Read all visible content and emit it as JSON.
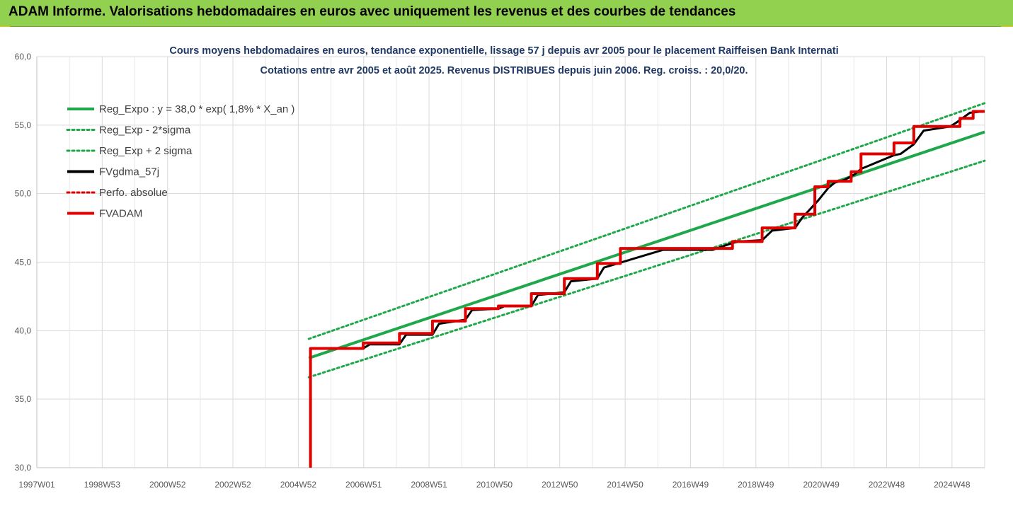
{
  "banner": {
    "title": "ADAM Informe. Valorisations hebdomadaires en euros avec uniquement les revenus et des courbes de tendances",
    "background": "#92d050"
  },
  "chart_data": {
    "type": "line",
    "title": [
      "Cours moyens hebdomadaires en euros, tendance exponentielle, lissage 57 j depuis avr 2005 pour le placement Raiffeisen Bank Internati",
      "Cotations entre avr 2005 et août 2025. Revenus DISTRIBUES depuis juin 2006. Reg. croiss. : 20,0/20."
    ],
    "x_ticks": [
      "1997W01",
      "1998W53",
      "2000W52",
      "2002W52",
      "2004W52",
      "2006W51",
      "2008W51",
      "2010W50",
      "2012W50",
      "2014W50",
      "2016W49",
      "2018W49",
      "2020W49",
      "2022W48",
      "2024W48"
    ],
    "y_ticks": [
      "30,0",
      "35,0",
      "40,0",
      "45,0",
      "50,0",
      "55,0",
      "60,0"
    ],
    "ylim": [
      30,
      60
    ],
    "xlim": [
      1997.0,
      2025.75
    ],
    "grid": true,
    "legend_position": "top-left",
    "series": [
      {
        "name": "Reg_Expo : y = 38,0 * exp( 1,8% *  X_an )",
        "color": "#1ea84a",
        "style": "solid",
        "width": 4,
        "x": [
          2005.25,
          2025.75
        ],
        "y": [
          38.0,
          54.5
        ]
      },
      {
        "name": "Reg_Exp - 2*sigma",
        "color": "#1ea84a",
        "style": "dotted",
        "width": 3,
        "x": [
          2005.25,
          2025.75
        ],
        "y": [
          36.6,
          52.4
        ]
      },
      {
        "name": "Reg_Exp + 2 sigma",
        "color": "#1ea84a",
        "style": "dotted",
        "width": 3,
        "x": [
          2005.25,
          2025.75
        ],
        "y": [
          39.4,
          56.6
        ]
      },
      {
        "name": "FVgdma_57j",
        "color": "#000000",
        "style": "solid",
        "width": 3,
        "x": [
          2005.4,
          2006.9,
          2007.1,
          2008.0,
          2008.2,
          2009.0,
          2009.2,
          2010.0,
          2010.2,
          2011.0,
          2011.2,
          2012.0,
          2012.2,
          2013.0,
          2013.2,
          2014.0,
          2014.2,
          2016.0,
          2017.5,
          2018.1,
          2018.3,
          2019.0,
          2019.3,
          2020.0,
          2020.2,
          2020.7,
          2021.0,
          2021.2,
          2021.5,
          2021.8,
          2022.0,
          2023.0,
          2023.2,
          2023.6,
          2023.9,
          2024.7,
          2024.9,
          2025.3,
          2025.7
        ],
        "y": [
          38.7,
          38.7,
          39.0,
          39.0,
          39.7,
          39.7,
          40.5,
          40.8,
          41.5,
          41.6,
          41.8,
          41.8,
          42.6,
          42.8,
          43.6,
          43.8,
          44.6,
          45.9,
          45.9,
          46.4,
          46.5,
          46.6,
          47.3,
          47.5,
          48.2,
          49.5,
          50.4,
          50.8,
          51.0,
          51.4,
          51.8,
          52.8,
          52.9,
          53.6,
          54.6,
          54.9,
          55.2,
          55.9,
          56.0
        ]
      },
      {
        "name": "Perfo. absolue",
        "color": "#e00000",
        "style": "dotted",
        "width": 2,
        "x": [],
        "y": []
      },
      {
        "name": "FVADAM",
        "color": "#e00000",
        "style": "solid",
        "width": 4,
        "x": [
          2005.3,
          2005.3,
          2006.9,
          2006.9,
          2008.0,
          2008.0,
          2009.0,
          2009.0,
          2010.0,
          2010.0,
          2011.0,
          2011.0,
          2012.0,
          2012.0,
          2013.0,
          2013.0,
          2014.0,
          2014.0,
          2014.7,
          2014.7,
          2018.1,
          2018.1,
          2019.0,
          2019.0,
          2020.0,
          2020.0,
          2020.6,
          2020.6,
          2021.0,
          2021.0,
          2021.7,
          2021.7,
          2022.0,
          2022.0,
          2023.0,
          2023.0,
          2023.6,
          2023.6,
          2024.0,
          2024.0,
          2025.0,
          2025.0,
          2025.4,
          2025.4,
          2025.75
        ],
        "y": [
          30.0,
          38.7,
          38.7,
          39.1,
          39.1,
          39.8,
          39.8,
          40.7,
          40.7,
          41.6,
          41.6,
          41.8,
          41.8,
          42.7,
          42.7,
          43.8,
          43.8,
          44.9,
          44.9,
          46.0,
          46.0,
          46.5,
          46.5,
          47.5,
          47.5,
          48.5,
          48.5,
          50.5,
          50.5,
          50.9,
          50.9,
          51.6,
          51.6,
          52.9,
          52.9,
          53.7,
          53.7,
          54.9,
          54.9,
          54.9,
          54.9,
          55.5,
          55.5,
          56.0,
          56.0
        ]
      }
    ]
  }
}
